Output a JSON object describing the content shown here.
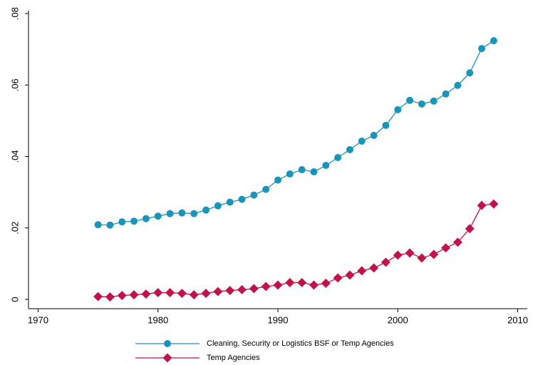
{
  "chart_data": {
    "type": "line",
    "x": [
      1975,
      1976,
      1977,
      1978,
      1979,
      1980,
      1981,
      1982,
      1983,
      1984,
      1985,
      1986,
      1987,
      1988,
      1989,
      1990,
      1991,
      1992,
      1993,
      1994,
      1995,
      1996,
      1997,
      1998,
      1999,
      2000,
      2001,
      2002,
      2003,
      2004,
      2005,
      2006,
      2007,
      2008
    ],
    "series": [
      {
        "name": "Cleaning, Security or Logistics BSF or Temp Agencies",
        "color": "#1a94bb",
        "marker": "circle",
        "values": [
          0.0209,
          0.0208,
          0.0217,
          0.0219,
          0.0226,
          0.0233,
          0.024,
          0.0242,
          0.024,
          0.025,
          0.0262,
          0.0272,
          0.028,
          0.0292,
          0.0308,
          0.0334,
          0.0351,
          0.0363,
          0.0357,
          0.0375,
          0.0397,
          0.0419,
          0.0443,
          0.0459,
          0.0487,
          0.0531,
          0.0557,
          0.0547,
          0.0555,
          0.0575,
          0.0599,
          0.0634,
          0.0702,
          0.0724
        ]
      },
      {
        "name": "Temp Agencies",
        "color": "#c0134a",
        "marker": "diamond",
        "values": [
          0.0008,
          0.0007,
          0.0011,
          0.0013,
          0.0015,
          0.0019,
          0.0019,
          0.0017,
          0.0013,
          0.0017,
          0.0022,
          0.0025,
          0.0027,
          0.003,
          0.0036,
          0.004,
          0.0047,
          0.0047,
          0.004,
          0.0045,
          0.006,
          0.0068,
          0.008,
          0.0088,
          0.0104,
          0.0124,
          0.013,
          0.0116,
          0.0126,
          0.0144,
          0.016,
          0.0198,
          0.0263,
          0.0267
        ]
      }
    ],
    "xlim": [
      1969.2,
      2010.8
    ],
    "xticks": [
      1970,
      1980,
      1990,
      2000,
      2010
    ],
    "ylim": [
      -0.0026,
      0.0808
    ],
    "yticks": [
      0,
      {
        "value": 0.02,
        "label": ".02"
      },
      {
        "value": 0.04,
        "label": ".04"
      },
      {
        "value": 0.06,
        "label": ".06"
      },
      {
        "value": 0.08,
        "label": ".08"
      }
    ],
    "grid": false
  }
}
